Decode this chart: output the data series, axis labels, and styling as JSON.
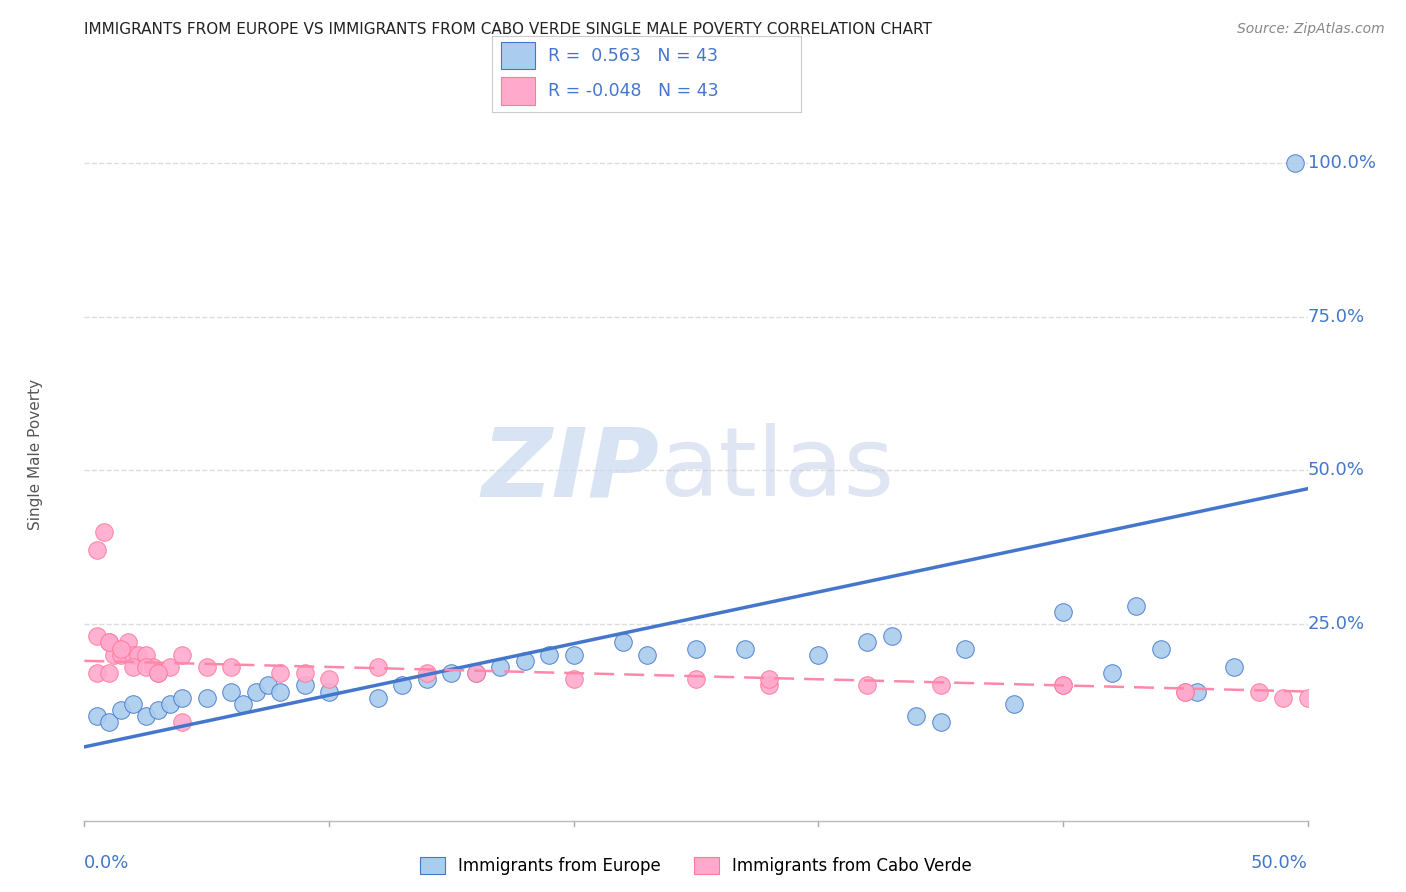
{
  "title": "IMMIGRANTS FROM EUROPE VS IMMIGRANTS FROM CABO VERDE SINGLE MALE POVERTY CORRELATION CHART",
  "source": "Source: ZipAtlas.com",
  "ylabel": "Single Male Poverty",
  "ytick_labels": [
    "100.0%",
    "75.0%",
    "50.0%",
    "25.0%"
  ],
  "ytick_values": [
    1.0,
    0.75,
    0.5,
    0.25
  ],
  "xlim": [
    0.0,
    0.5
  ],
  "ylim": [
    -0.07,
    1.12
  ],
  "legend_europe_r": "0.563",
  "legend_europe_n": "43",
  "legend_cabo_r": "-0.048",
  "legend_cabo_n": "43",
  "europe_color": "#AACCEE",
  "cabo_color": "#FFAACC",
  "europe_line_color": "#4477CC",
  "cabo_line_color": "#FF88AA",
  "europe_scatter_x": [
    0.005,
    0.01,
    0.015,
    0.02,
    0.025,
    0.03,
    0.035,
    0.04,
    0.05,
    0.06,
    0.065,
    0.07,
    0.075,
    0.08,
    0.09,
    0.1,
    0.12,
    0.13,
    0.14,
    0.15,
    0.16,
    0.17,
    0.18,
    0.19,
    0.2,
    0.22,
    0.23,
    0.25,
    0.27,
    0.3,
    0.32,
    0.33,
    0.34,
    0.35,
    0.36,
    0.38,
    0.4,
    0.42,
    0.43,
    0.44,
    0.455,
    0.47,
    0.495
  ],
  "europe_scatter_y": [
    0.1,
    0.09,
    0.11,
    0.12,
    0.1,
    0.11,
    0.12,
    0.13,
    0.13,
    0.14,
    0.12,
    0.14,
    0.15,
    0.14,
    0.15,
    0.14,
    0.13,
    0.15,
    0.16,
    0.17,
    0.17,
    0.18,
    0.19,
    0.2,
    0.2,
    0.22,
    0.2,
    0.21,
    0.21,
    0.2,
    0.22,
    0.23,
    0.1,
    0.09,
    0.21,
    0.12,
    0.27,
    0.17,
    0.28,
    0.21,
    0.14,
    0.18,
    1.0
  ],
  "cabo_scatter_x": [
    0.005,
    0.008,
    0.01,
    0.012,
    0.015,
    0.018,
    0.02,
    0.022,
    0.025,
    0.028,
    0.03,
    0.035,
    0.04,
    0.05,
    0.06,
    0.08,
    0.09,
    0.1,
    0.12,
    0.14,
    0.16,
    0.2,
    0.25,
    0.28,
    0.32,
    0.35,
    0.4,
    0.45,
    0.005,
    0.01,
    0.015,
    0.02,
    0.025,
    0.03,
    0.04,
    0.28,
    0.4,
    0.45,
    0.48,
    0.49,
    0.5,
    0.005,
    0.01
  ],
  "cabo_scatter_y": [
    0.37,
    0.4,
    0.22,
    0.2,
    0.2,
    0.22,
    0.2,
    0.2,
    0.2,
    0.18,
    0.17,
    0.18,
    0.2,
    0.18,
    0.18,
    0.17,
    0.17,
    0.16,
    0.18,
    0.17,
    0.17,
    0.16,
    0.16,
    0.15,
    0.15,
    0.15,
    0.15,
    0.14,
    0.23,
    0.22,
    0.21,
    0.18,
    0.18,
    0.17,
    0.09,
    0.16,
    0.15,
    0.14,
    0.14,
    0.13,
    0.13,
    0.17,
    0.17
  ],
  "europe_trend_x": [
    0.0,
    0.5
  ],
  "europe_trend_y": [
    0.05,
    0.47
  ],
  "cabo_trend_x": [
    0.0,
    0.5
  ],
  "cabo_trend_y": [
    0.19,
    0.14
  ],
  "background_color": "#FFFFFF",
  "grid_color": "#DDDDDD"
}
